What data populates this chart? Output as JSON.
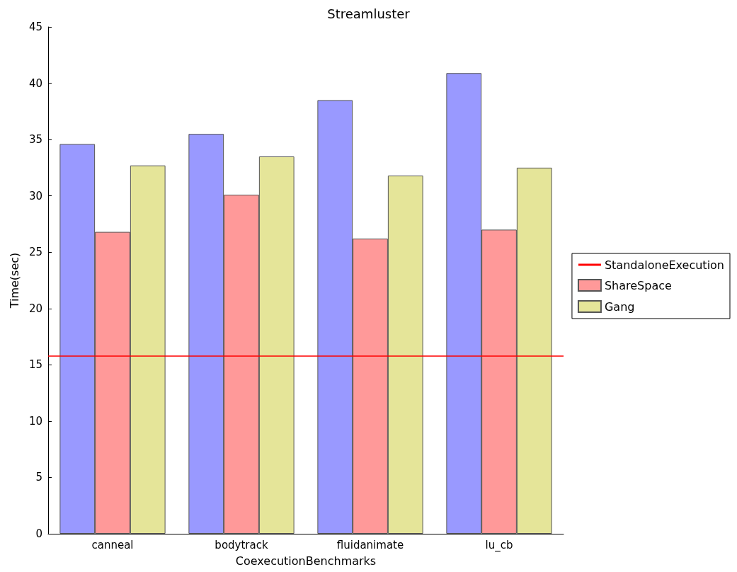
{
  "chart_data": {
    "type": "bar",
    "title": "Streamluster",
    "xlabel": "CoexecutionBenchmarks",
    "ylabel": "Time(sec)",
    "categories": [
      "canneal",
      "bodytrack",
      "fluidanimate",
      "lu_cb"
    ],
    "series": [
      {
        "color": "#9999ff",
        "values": [
          34.6,
          35.5,
          38.5,
          40.9
        ]
      },
      {
        "name": "ShareSpace",
        "color": "#ff9999",
        "values": [
          26.8,
          30.1,
          26.2,
          27.0
        ]
      },
      {
        "name": "Gang",
        "color": "#e5e599",
        "values": [
          32.7,
          33.5,
          31.8,
          32.5
        ]
      }
    ],
    "ylim": [
      0,
      45
    ],
    "yticks": [
      0,
      5,
      10,
      15,
      20,
      25,
      30,
      35,
      40,
      45
    ],
    "ref_lines": [
      {
        "axis": "y",
        "value": 15.8,
        "label": "StandaloneExecution",
        "color": "#ff0000"
      }
    ],
    "grid": false,
    "legend": "right"
  }
}
